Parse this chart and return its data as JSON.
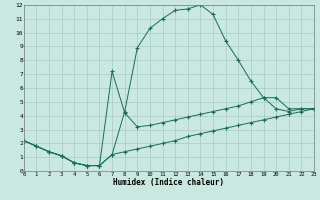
{
  "bg_color": "#c8e8e0",
  "grid_color": "#a0c4bc",
  "line_color": "#1a6b5a",
  "xlim": [
    0,
    23
  ],
  "ylim": [
    0,
    12
  ],
  "xticks": [
    0,
    1,
    2,
    3,
    4,
    5,
    6,
    7,
    8,
    9,
    10,
    11,
    12,
    13,
    14,
    15,
    16,
    17,
    18,
    19,
    20,
    21,
    22,
    23
  ],
  "yticks": [
    0,
    1,
    2,
    3,
    4,
    5,
    6,
    7,
    8,
    9,
    10,
    11,
    12
  ],
  "xlabel": "Humidex (Indice chaleur)",
  "s1x": [
    0,
    1,
    2,
    3,
    4,
    5,
    6,
    7,
    8,
    9,
    10,
    11,
    12,
    13,
    14,
    15,
    16,
    17,
    18,
    19,
    20,
    21,
    22,
    23
  ],
  "s1y": [
    2.2,
    1.8,
    1.4,
    1.1,
    0.6,
    0.4,
    0.4,
    1.2,
    4.3,
    8.9,
    10.3,
    11.0,
    11.6,
    11.7,
    12.0,
    11.3,
    9.4,
    8.0,
    6.5,
    5.3,
    4.5,
    4.3,
    4.5,
    4.5
  ],
  "s2x": [
    0,
    1,
    2,
    3,
    4,
    5,
    6,
    7,
    8,
    9,
    10,
    11,
    12,
    13,
    14,
    15,
    16,
    17,
    18,
    19,
    20,
    21,
    22,
    23
  ],
  "s2y": [
    2.2,
    1.8,
    1.4,
    1.1,
    0.6,
    0.4,
    0.4,
    7.2,
    4.2,
    3.2,
    3.3,
    3.5,
    3.7,
    3.9,
    4.1,
    4.3,
    4.5,
    4.7,
    5.0,
    5.3,
    5.3,
    4.5,
    4.5,
    4.5
  ],
  "s3x": [
    0,
    1,
    2,
    3,
    4,
    5,
    6,
    7,
    8,
    9,
    10,
    11,
    12,
    13,
    14,
    15,
    16,
    17,
    18,
    19,
    20,
    21,
    22,
    23
  ],
  "s3y": [
    2.2,
    1.8,
    1.4,
    1.1,
    0.6,
    0.4,
    0.4,
    1.2,
    1.4,
    1.6,
    1.8,
    2.0,
    2.2,
    2.5,
    2.7,
    2.9,
    3.1,
    3.3,
    3.5,
    3.7,
    3.9,
    4.1,
    4.3,
    4.5
  ]
}
